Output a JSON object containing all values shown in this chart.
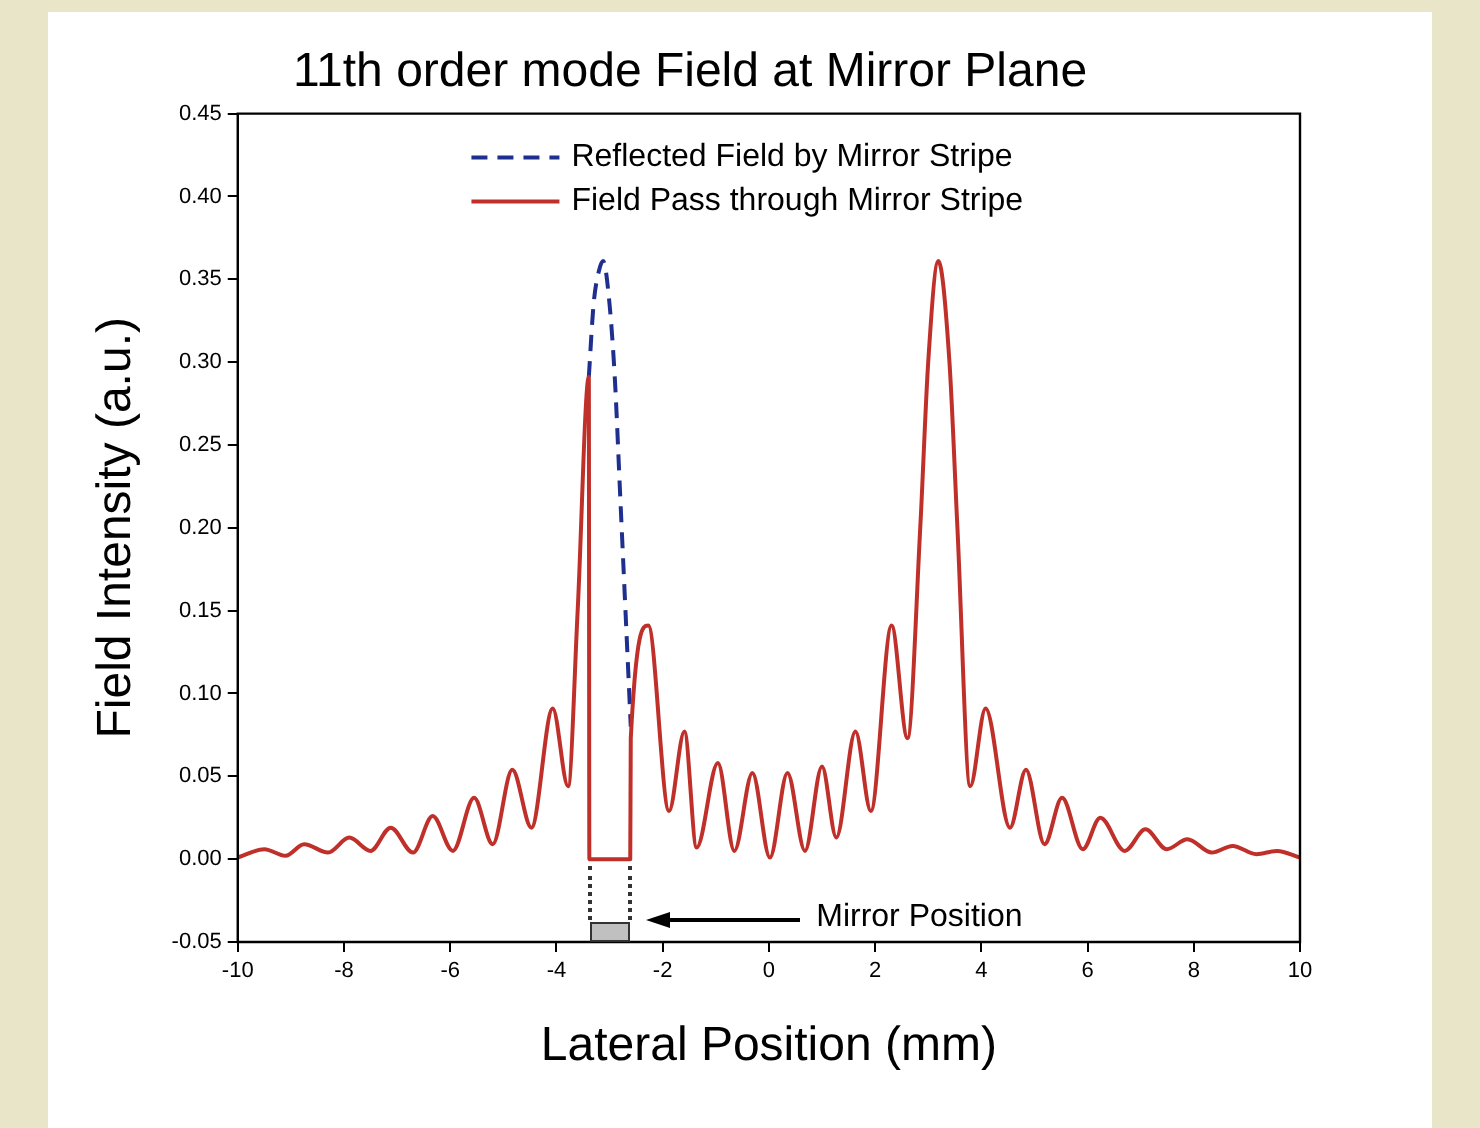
{
  "chart_data": {
    "type": "line",
    "title": "11th order mode Field at Mirror Plane",
    "xlabel": "Lateral Position (mm)",
    "ylabel": "Field Intensity (a.u.)",
    "xlim": [
      -10,
      10
    ],
    "xticks": [
      -10,
      -8,
      -6,
      -4,
      -2,
      0,
      2,
      4,
      6,
      8,
      10
    ],
    "ylim": [
      -0.05,
      0.45
    ],
    "yticks": [
      {
        "value": -0.05,
        "label": "-0.05"
      },
      {
        "value": 0,
        "label": "0.00"
      },
      {
        "value": 0.05,
        "label": "0.05"
      },
      {
        "value": 0.1,
        "label": "0.10"
      },
      {
        "value": 0.15,
        "label": "0.15"
      },
      {
        "value": 0.2,
        "label": "0.20"
      },
      {
        "value": 0.25,
        "label": "0.25"
      },
      {
        "value": 0.3,
        "label": "0.30"
      },
      {
        "value": 0.35,
        "label": "0.35"
      },
      {
        "value": 0.4,
        "label": "0.40"
      },
      {
        "value": 0.45,
        "label": "0.45"
      }
    ],
    "grid": false,
    "legend": "top",
    "marker": "none",
    "annotations": [
      "Mirror Position"
    ],
    "series": [
      {
        "name": "Reflected Field by Mirror Stripe",
        "color": "#1f2f8f",
        "line_style": "dashed",
        "x": [
          -3.39,
          -3.3,
          -3.2,
          -3.12,
          -3.0,
          -2.9,
          -2.8,
          -2.7,
          -2.6
        ],
        "values": [
          0.291,
          0.335,
          0.355,
          0.361,
          0.335,
          0.29,
          0.22,
          0.15,
          0.08
        ]
      },
      {
        "name": "Field Pass through Mirror Stripe",
        "color": "#c0302a",
        "line_style": "solid",
        "x": [
          -10,
          -9.5,
          -9.1,
          -8.75,
          -8.3,
          -7.9,
          -7.5,
          -7.12,
          -6.7,
          -6.33,
          -5.95,
          -5.55,
          -5.2,
          -4.83,
          -4.47,
          -4.07,
          -3.78,
          -3.6,
          -3.39,
          -3.38,
          -2.61,
          -2.6,
          -2.27,
          -1.88,
          -1.59,
          -1.36,
          -0.96,
          -0.65,
          -0.31,
          0.02,
          0.35,
          0.68,
          1.0,
          1.27,
          1.63,
          1.92,
          2.31,
          2.61,
          2.85,
          3.0,
          3.19,
          3.4,
          3.55,
          3.79,
          4.08,
          4.54,
          4.84,
          5.19,
          5.52,
          5.91,
          6.24,
          6.7,
          7.09,
          7.49,
          7.88,
          8.34,
          8.73,
          9.18,
          9.57,
          10
        ],
        "values": [
          0.001,
          0.006,
          0.002,
          0.009,
          0.004,
          0.013,
          0.005,
          0.019,
          0.004,
          0.026,
          0.005,
          0.037,
          0.009,
          0.054,
          0.019,
          0.091,
          0.044,
          0.15,
          0.291,
          0,
          0,
          0.073,
          0.141,
          0.029,
          0.077,
          0.007,
          0.058,
          0.005,
          0.052,
          0.001,
          0.052,
          0.005,
          0.056,
          0.013,
          0.077,
          0.029,
          0.141,
          0.073,
          0.2,
          0.3,
          0.361,
          0.3,
          0.2,
          0.044,
          0.091,
          0.019,
          0.054,
          0.009,
          0.037,
          0.006,
          0.025,
          0.005,
          0.018,
          0.006,
          0.012,
          0.004,
          0.008,
          0.003,
          0.005,
          0.001
        ]
      }
    ]
  }
}
